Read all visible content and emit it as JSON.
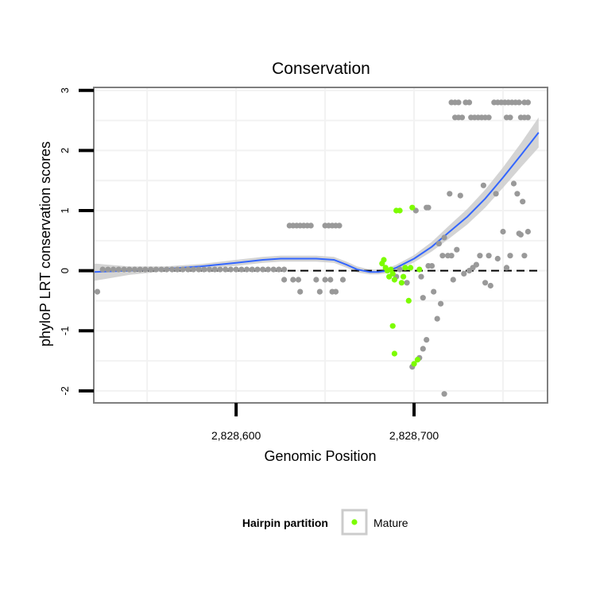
{
  "chart_data": {
    "type": "scatter",
    "title": "Conservation",
    "xlabel": "Genomic Position",
    "ylabel": "phyloP LRT conservation scores",
    "xlim": [
      2828520,
      2828775
    ],
    "ylim": [
      -2.2,
      3.05
    ],
    "x_ticks": [
      2828600,
      2828700
    ],
    "x_tick_labels": [
      "2,828,600",
      "2,828,700"
    ],
    "y_ticks": [
      -2,
      -1,
      0,
      1,
      2,
      3
    ],
    "y_tick_labels": [
      "-2",
      "-1",
      "0",
      "1",
      "2",
      "3"
    ],
    "reference_line": {
      "y": 0,
      "style": "dashed",
      "color": "#000000"
    },
    "legend": {
      "title": "Hairpin partition",
      "position": "bottom",
      "entries": [
        {
          "label": "Mature",
          "color": "#7cfc00"
        }
      ]
    },
    "colors": {
      "other": "#999999",
      "mature": "#7cfc00",
      "smooth": "#3366ff",
      "band": "#cccccc",
      "panel_border": "#7f7f7f",
      "grid": "#f2f2f2"
    },
    "series": [
      {
        "name": "Other",
        "points": [
          [
            2828522,
            -0.35
          ],
          [
            2828525,
            0.02
          ],
          [
            2828528,
            0.02
          ],
          [
            2828531,
            0.02
          ],
          [
            2828534,
            0.02
          ],
          [
            2828537,
            0.02
          ],
          [
            2828540,
            0.02
          ],
          [
            2828543,
            0.02
          ],
          [
            2828546,
            0.02
          ],
          [
            2828549,
            0.02
          ],
          [
            2828552,
            0.02
          ],
          [
            2828555,
            0.02
          ],
          [
            2828558,
            0.02
          ],
          [
            2828561,
            0.02
          ],
          [
            2828564,
            0.02
          ],
          [
            2828567,
            0.02
          ],
          [
            2828570,
            0.02
          ],
          [
            2828573,
            0.02
          ],
          [
            2828576,
            0.02
          ],
          [
            2828579,
            0.02
          ],
          [
            2828582,
            0.02
          ],
          [
            2828585,
            0.02
          ],
          [
            2828588,
            0.02
          ],
          [
            2828591,
            0.02
          ],
          [
            2828594,
            0.02
          ],
          [
            2828597,
            0.02
          ],
          [
            2828600,
            0.02
          ],
          [
            2828603,
            0.02
          ],
          [
            2828606,
            0.02
          ],
          [
            2828609,
            0.02
          ],
          [
            2828612,
            0.02
          ],
          [
            2828615,
            0.02
          ],
          [
            2828618,
            0.02
          ],
          [
            2828621,
            0.02
          ],
          [
            2828624,
            0.02
          ],
          [
            2828627,
            0.02
          ],
          [
            2828627,
            -0.15
          ],
          [
            2828630,
            0.75
          ],
          [
            2828632,
            0.75
          ],
          [
            2828634,
            0.75
          ],
          [
            2828636,
            0.75
          ],
          [
            2828638,
            0.75
          ],
          [
            2828640,
            0.75
          ],
          [
            2828642,
            0.75
          ],
          [
            2828632,
            -0.15
          ],
          [
            2828635,
            -0.15
          ],
          [
            2828636,
            -0.35
          ],
          [
            2828645,
            -0.15
          ],
          [
            2828647,
            -0.35
          ],
          [
            2828650,
            0.75
          ],
          [
            2828652,
            0.75
          ],
          [
            2828654,
            0.75
          ],
          [
            2828656,
            0.75
          ],
          [
            2828658,
            0.75
          ],
          [
            2828650,
            -0.15
          ],
          [
            2828653,
            -0.15
          ],
          [
            2828654,
            -0.35
          ],
          [
            2828656,
            -0.35
          ],
          [
            2828660,
            -0.15
          ],
          [
            2828690,
            -0.1
          ],
          [
            2828692,
            0.02
          ],
          [
            2828696,
            -0.2
          ],
          [
            2828701,
            1.0
          ],
          [
            2828704,
            -0.1
          ],
          [
            2828705,
            -0.45
          ],
          [
            2828707,
            1.05
          ],
          [
            2828708,
            1.05
          ],
          [
            2828708,
            0.08
          ],
          [
            2828710,
            0.08
          ],
          [
            2828711,
            -0.35
          ],
          [
            2828699,
            -1.6
          ],
          [
            2828703,
            -1.45
          ],
          [
            2828705,
            -1.3
          ],
          [
            2828707,
            -1.15
          ],
          [
            2828713,
            -0.8
          ],
          [
            2828715,
            -0.55
          ],
          [
            2828716,
            0.25
          ],
          [
            2828714,
            0.45
          ],
          [
            2828717,
            0.55
          ],
          [
            2828717,
            -2.05
          ],
          [
            2828719,
            0.25
          ],
          [
            2828720,
            1.28
          ],
          [
            2828721,
            0.25
          ],
          [
            2828722,
            -0.15
          ],
          [
            2828724,
            0.35
          ],
          [
            2828726,
            1.25
          ],
          [
            2828728,
            -0.05
          ],
          [
            2828731,
            0.0
          ],
          [
            2828733,
            0.05
          ],
          [
            2828735,
            0.1
          ],
          [
            2828737,
            0.25
          ],
          [
            2828739,
            1.42
          ],
          [
            2828740,
            -0.2
          ],
          [
            2828742,
            0.25
          ],
          [
            2828743,
            -0.25
          ],
          [
            2828746,
            1.28
          ],
          [
            2828747,
            0.2
          ],
          [
            2828750,
            0.65
          ],
          [
            2828752,
            0.05
          ],
          [
            2828754,
            0.25
          ],
          [
            2828756,
            1.45
          ],
          [
            2828758,
            1.28
          ],
          [
            2828759,
            0.62
          ],
          [
            2828760,
            0.6
          ],
          [
            2828761,
            1.15
          ],
          [
            2828762,
            0.25
          ],
          [
            2828764,
            0.65
          ],
          [
            2828721,
            2.8
          ],
          [
            2828723,
            2.8
          ],
          [
            2828725,
            2.8
          ],
          [
            2828729,
            2.8
          ],
          [
            2828731,
            2.8
          ],
          [
            2828745,
            2.8
          ],
          [
            2828747,
            2.8
          ],
          [
            2828749,
            2.8
          ],
          [
            2828751,
            2.8
          ],
          [
            2828753,
            2.8
          ],
          [
            2828755,
            2.8
          ],
          [
            2828757,
            2.8
          ],
          [
            2828759,
            2.8
          ],
          [
            2828762,
            2.8
          ],
          [
            2828764,
            2.8
          ],
          [
            2828723,
            2.55
          ],
          [
            2828725,
            2.55
          ],
          [
            2828727,
            2.55
          ],
          [
            2828732,
            2.55
          ],
          [
            2828734,
            2.55
          ],
          [
            2828736,
            2.55
          ],
          [
            2828738,
            2.55
          ],
          [
            2828740,
            2.55
          ],
          [
            2828742,
            2.55
          ],
          [
            2828752,
            2.55
          ],
          [
            2828754,
            2.55
          ],
          [
            2828760,
            2.55
          ],
          [
            2828762,
            2.55
          ],
          [
            2828764,
            2.55
          ]
        ]
      },
      {
        "name": "Mature",
        "points": [
          [
            2828682,
            0.12
          ],
          [
            2828683,
            0.18
          ],
          [
            2828684,
            0.05
          ],
          [
            2828685,
            0.0
          ],
          [
            2828686,
            -0.1
          ],
          [
            2828687,
            0.02
          ],
          [
            2828688,
            -0.05
          ],
          [
            2828689,
            -0.15
          ],
          [
            2828688,
            -0.92
          ],
          [
            2828689,
            -1.38
          ],
          [
            2828690,
            1.0
          ],
          [
            2828692,
            1.0
          ],
          [
            2828693,
            -0.2
          ],
          [
            2828694,
            -0.1
          ],
          [
            2828695,
            0.05
          ],
          [
            2828697,
            -0.5
          ],
          [
            2828698,
            0.05
          ],
          [
            2828699,
            1.05
          ],
          [
            2828700,
            -1.55
          ],
          [
            2828702,
            -1.48
          ],
          [
            2828703,
            0.02
          ]
        ]
      }
    ],
    "smooth": {
      "x": [
        2828520,
        2828540,
        2828560,
        2828580,
        2828600,
        2828615,
        2828625,
        2828635,
        2828645,
        2828655,
        2828662,
        2828668,
        2828675,
        2828680,
        2828685,
        2828690,
        2828700,
        2828710,
        2828720,
        2828730,
        2828740,
        2828750,
        2828760,
        2828770
      ],
      "y": [
        -0.02,
        0.0,
        0.03,
        0.07,
        0.13,
        0.18,
        0.2,
        0.2,
        0.2,
        0.18,
        0.1,
        0.02,
        -0.02,
        -0.02,
        0.0,
        0.05,
        0.2,
        0.4,
        0.65,
        0.9,
        1.2,
        1.55,
        1.92,
        2.3
      ],
      "ci_upper": [
        0.12,
        0.07,
        0.07,
        0.11,
        0.18,
        0.23,
        0.25,
        0.25,
        0.25,
        0.23,
        0.15,
        0.07,
        0.02,
        0.02,
        0.04,
        0.1,
        0.26,
        0.48,
        0.76,
        1.03,
        1.35,
        1.72,
        2.12,
        2.55
      ],
      "ci_lower": [
        -0.17,
        -0.07,
        -0.01,
        0.03,
        0.08,
        0.13,
        0.15,
        0.15,
        0.15,
        0.13,
        0.05,
        -0.03,
        -0.06,
        -0.06,
        -0.04,
        0.0,
        0.14,
        0.32,
        0.54,
        0.77,
        1.05,
        1.38,
        1.72,
        2.05
      ]
    }
  }
}
